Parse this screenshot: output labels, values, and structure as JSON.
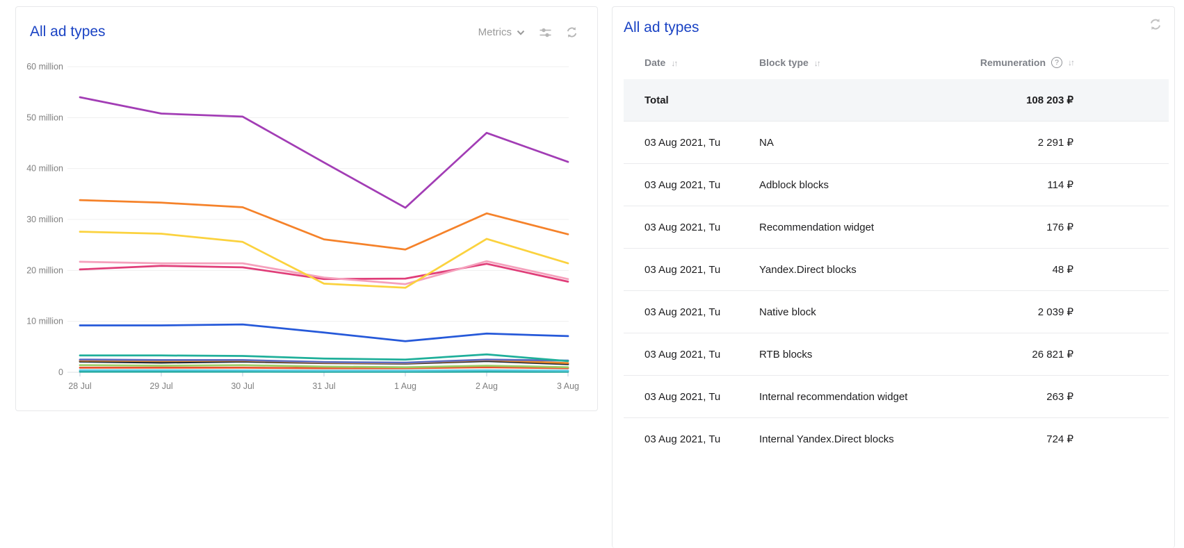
{
  "colors": {
    "title_blue": "#1a43c4",
    "total_row_bg": "#f4f6f8",
    "gridline": "#efefef",
    "axis_text": "#808080"
  },
  "left_panel": {
    "title": "All ad types",
    "metrics_label": "Metrics"
  },
  "chart_data": {
    "type": "line",
    "title": "All ad types",
    "y_unit": "million",
    "ylim_millions": [
      0,
      60
    ],
    "grid": true,
    "legend": "none",
    "x": [
      "28 Jul",
      "29 Jul",
      "30 Jul",
      "31 Jul",
      "1 Aug",
      "2 Aug",
      "3 Aug"
    ],
    "y_ticks": [
      "60 million",
      "50 million",
      "40 million",
      "30 million",
      "20 million",
      "10 million",
      "0"
    ],
    "series": [
      {
        "name": "teal-flat-line",
        "color": "#17a296",
        "values": [
          0.12,
          0.12,
          0.12,
          0.1,
          0.1,
          0.12,
          0.1
        ]
      },
      {
        "name": "cyan-line",
        "color": "#59c8de",
        "values": [
          0.4,
          0.4,
          0.35,
          0.3,
          0.3,
          0.4,
          0.3
        ]
      },
      {
        "name": "red-orange-line",
        "color": "#e8512e",
        "values": [
          0.9,
          0.9,
          0.9,
          0.8,
          0.8,
          1.0,
          0.8
        ]
      },
      {
        "name": "light-green-line",
        "color": "#9ccc65",
        "values": [
          1.4,
          1.3,
          1.4,
          1.1,
          1.0,
          1.3,
          1.0
        ]
      },
      {
        "name": "dark-navy-line",
        "color": "#1c2733",
        "values": [
          2.1,
          1.9,
          2.1,
          1.8,
          1.7,
          2.2,
          1.6
        ]
      },
      {
        "name": "dark-orange-line",
        "color": "#e8862b",
        "values": [
          2.3,
          2.2,
          2.3,
          1.9,
          1.8,
          2.4,
          1.8
        ]
      },
      {
        "name": "indigo-line",
        "color": "#5c6bc0",
        "values": [
          2.5,
          2.4,
          2.4,
          2.0,
          1.9,
          2.5,
          2.3
        ]
      },
      {
        "name": "teal-line",
        "color": "#1faf9a",
        "values": [
          3.3,
          3.3,
          3.2,
          2.7,
          2.5,
          3.5,
          2.2
        ]
      },
      {
        "name": "blue-line",
        "color": "#2659d9",
        "values": [
          9.2,
          9.2,
          9.4,
          7.8,
          6.1,
          7.6,
          7.1
        ]
      },
      {
        "name": "crimson-line",
        "color": "#e03e79",
        "values": [
          20.2,
          20.9,
          20.6,
          18.3,
          18.4,
          21.3,
          17.8
        ]
      },
      {
        "name": "pink-line",
        "color": "#f5a0bc",
        "values": [
          21.7,
          21.4,
          21.4,
          18.6,
          17.3,
          21.8,
          18.3
        ]
      },
      {
        "name": "yellow-line",
        "color": "#fbd23e",
        "values": [
          27.6,
          27.2,
          25.6,
          17.4,
          16.6,
          26.2,
          21.4
        ]
      },
      {
        "name": "orange-line",
        "color": "#f5822a",
        "values": [
          33.8,
          33.3,
          32.4,
          26.1,
          24.1,
          31.2,
          27.1
        ]
      },
      {
        "name": "purple-line",
        "color": "#a23db5",
        "values": [
          54.0,
          50.8,
          50.2,
          41.2,
          32.3,
          47.0,
          41.3
        ]
      }
    ]
  },
  "right_panel": {
    "title": "All ad types",
    "columns": {
      "date": {
        "label": "Date"
      },
      "block_type": {
        "label": "Block type"
      },
      "remuneration": {
        "label": "Remuneration",
        "help": "?"
      }
    },
    "sort_glyph": "↓↑",
    "total_row": {
      "date": "Total",
      "block_type": "",
      "remuneration": "108 203 ₽"
    },
    "rows": [
      {
        "date": "03 Aug 2021, Tu",
        "block_type": "NA",
        "remuneration": "2 291 ₽"
      },
      {
        "date": "03 Aug 2021, Tu",
        "block_type": "Adblock blocks",
        "remuneration": "114 ₽"
      },
      {
        "date": "03 Aug 2021, Tu",
        "block_type": "Recommendation widget",
        "remuneration": "176 ₽"
      },
      {
        "date": "03 Aug 2021, Tu",
        "block_type": "Yandex.Direct blocks",
        "remuneration": "48 ₽"
      },
      {
        "date": "03 Aug 2021, Tu",
        "block_type": "Native block",
        "remuneration": "2 039 ₽"
      },
      {
        "date": "03 Aug 2021, Tu",
        "block_type": "RTB blocks",
        "remuneration": "26 821 ₽"
      },
      {
        "date": "03 Aug 2021, Tu",
        "block_type": "Internal recommendation widget",
        "remuneration": "263 ₽"
      },
      {
        "date": "03 Aug 2021, Tu",
        "block_type": "Internal Yandex.Direct blocks",
        "remuneration": "724 ₽"
      }
    ]
  }
}
